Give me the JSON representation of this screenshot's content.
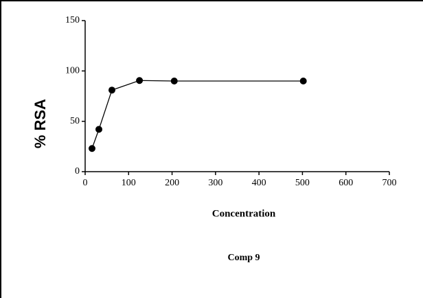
{
  "chart_data": {
    "type": "line",
    "xlabel": "Concentration",
    "ylabel": "% RSA",
    "caption": "Comp 9",
    "x": [
      15.8,
      31.6,
      61.6,
      125,
      205,
      502
    ],
    "values": [
      23,
      42,
      81,
      90.5,
      90,
      90
    ],
    "color": "#000000",
    "xlim": [
      0,
      700
    ],
    "xticks": [
      0,
      100,
      200,
      300,
      400,
      500,
      600,
      700
    ],
    "ylim": [
      0,
      150
    ],
    "yticks": [
      0,
      50,
      100,
      150
    ]
  }
}
